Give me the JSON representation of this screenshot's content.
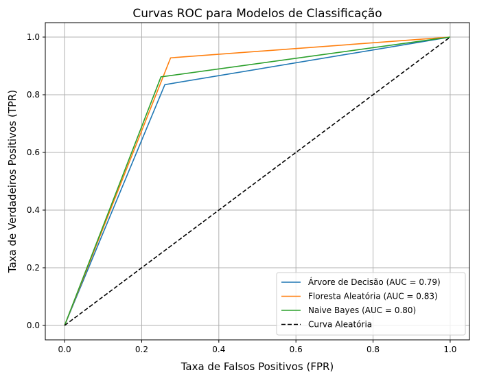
{
  "chart_data": {
    "type": "line",
    "title": "Curvas ROC para Modelos de Classificação",
    "xlabel": "Taxa de Falsos Positivos (FPR)",
    "ylabel": "Taxa de Verdadeiros Positivos (TPR)",
    "xlim": [
      -0.05,
      1.05
    ],
    "ylim": [
      -0.05,
      1.05
    ],
    "xticks": [
      0.0,
      0.2,
      0.4,
      0.6,
      0.8,
      1.0
    ],
    "xtick_labels": [
      "0.0",
      "0.2",
      "0.4",
      "0.6",
      "0.8",
      "1.0"
    ],
    "yticks": [
      0.0,
      0.2,
      0.4,
      0.6,
      0.8,
      1.0
    ],
    "ytick_labels": [
      "0.0",
      "0.2",
      "0.4",
      "0.6",
      "0.8",
      "1.0"
    ],
    "grid": true,
    "legend_position": "lower-right",
    "series": [
      {
        "name": "Árvore de Decisão (AUC = 0.79)",
        "color": "#1f77b4",
        "dash": "solid",
        "x": [
          0.0,
          0.26,
          1.0
        ],
        "y": [
          0.0,
          0.835,
          1.0
        ]
      },
      {
        "name": "Floresta Aleatória (AUC = 0.83)",
        "color": "#ff7f0e",
        "dash": "solid",
        "x": [
          0.0,
          0.275,
          1.0
        ],
        "y": [
          0.0,
          0.928,
          1.0
        ]
      },
      {
        "name": "Naive Bayes (AUC = 0.80)",
        "color": "#2ca02c",
        "dash": "solid",
        "x": [
          0.0,
          0.25,
          1.0
        ],
        "y": [
          0.0,
          0.862,
          1.0
        ]
      },
      {
        "name": "Curva Aleatória",
        "color": "#000000",
        "dash": "dashed",
        "x": [
          0.0,
          1.0
        ],
        "y": [
          0.0,
          1.0
        ]
      }
    ]
  }
}
